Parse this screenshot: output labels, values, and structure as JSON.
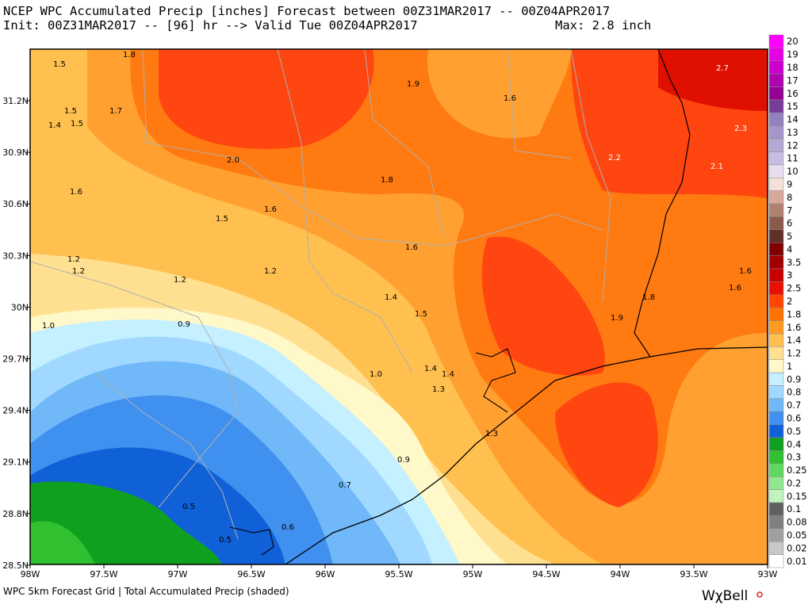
{
  "header": {
    "line1": "NCEP WPC Accumulated Precip [inches] Forecast between 00Z31MAR2017 -- 00Z04APR2017",
    "line2": "Init: 00Z31MAR2017 -- [96] hr --> Valid Tue 00Z04APR2017",
    "max": "Max: 2.8 inch"
  },
  "map": {
    "lon_labels": [
      "98W",
      "97.5W",
      "97W",
      "96.5W",
      "96W",
      "95.5W",
      "95W",
      "94.5W",
      "94W",
      "93.5W",
      "93W"
    ],
    "lat_labels": [
      "31.2N",
      "30.9N",
      "30.6N",
      "30.3N",
      "30N",
      "29.7N",
      "29.4N",
      "29.1N",
      "28.8N",
      "28.5N"
    ],
    "contour_labels": [
      "1.5",
      "1.8",
      "1.9",
      "1.6",
      "2.7",
      "1.5",
      "1.7",
      "1.4",
      "1.5",
      "2.3",
      "2.0",
      "2.2",
      "1.8",
      "2.1",
      "1.6",
      "1.6",
      "1.5",
      "1.6",
      "1.2",
      "1.2",
      "1.2",
      "1.6",
      "1.2",
      "1.6",
      "1.8",
      "1.4",
      "1.5",
      "1.9",
      "1.0",
      "0.9",
      "1.0",
      "1.4",
      "1.4",
      "1.3",
      "1.3",
      "0.9",
      "0.7",
      "0.5",
      "0.6",
      "0.5"
    ]
  },
  "colorbar": {
    "labels": [
      "20",
      "19",
      "18",
      "17",
      "16",
      "15",
      "14",
      "13",
      "12",
      "11",
      "10",
      "9",
      "8",
      "7",
      "6",
      "5",
      "4",
      "3.5",
      "3",
      "2.5",
      "2",
      "1.8",
      "1.6",
      "1.4",
      "1.2",
      "1",
      "0.9",
      "0.8",
      "0.7",
      "0.6",
      "0.5",
      "0.4",
      "0.3",
      "0.25",
      "0.2",
      "0.15",
      "0.1",
      "0.08",
      "0.05",
      "0.02",
      "0.01"
    ],
    "colors": [
      "#ff00ff",
      "#e600e6",
      "#cc00cc",
      "#b000b0",
      "#950095",
      "#7a3c9c",
      "#9580c0",
      "#a694cb",
      "#b6a8d6",
      "#c7bde2",
      "#e8dcee",
      "#f3e0d8",
      "#d8a898",
      "#b08070",
      "#8a5a4a",
      "#603028",
      "#800000",
      "#a00000",
      "#c80000",
      "#e81000",
      "#ff4500",
      "#ff7200",
      "#ff9a20",
      "#ffc050",
      "#ffe090",
      "#fff8c8",
      "#c4f0ff",
      "#a0d8ff",
      "#70b8f8",
      "#4090f0",
      "#1060d8",
      "#10a020",
      "#30c030",
      "#60d860",
      "#90e890",
      "#bff4bf",
      "#606060",
      "#808080",
      "#a0a0a0",
      "#c8c8c8",
      "#ffffff"
    ]
  },
  "footer": {
    "text": "WPC 5km Forecast Grid | Total Accumulated Precip (shaded)",
    "logo": "WχBell"
  }
}
